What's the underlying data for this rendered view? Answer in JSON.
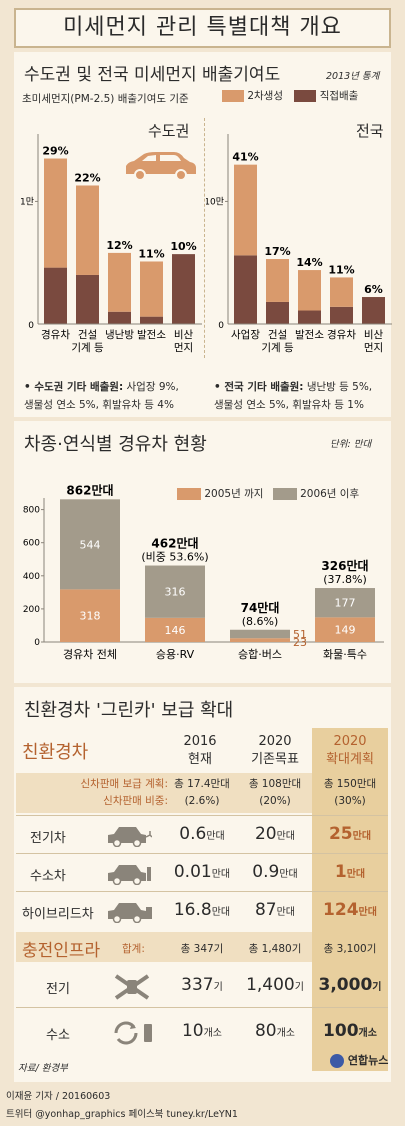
{
  "title": "미세먼지 관리 특별대책 개요",
  "colors": {
    "light": "#d99a6c",
    "dark": "#7a4a3f",
    "gray": "#a39b8b",
    "accent": "#b4622f",
    "bg": "#f2e6d2",
    "panel": "#fbf6ec"
  },
  "sec1": {
    "title": "수도권 및 전국 미세먼지 배출기여도",
    "year": "2013년 통계",
    "subtitle": "초미세먼지(PM-2.5) 배출기여도 기준",
    "legend_secondary": "2차생성",
    "legend_direct": "직접배출",
    "capital_label": "수도권",
    "nation_label": "전국",
    "capital_note_bold": "• 수도권 기타 배출원:",
    "capital_note_1": " 사업장 9%,",
    "capital_note_2": "생물성 연소 5%, 휘발유차 등 4%",
    "nation_note_bold": "• 전국 기타 배출원:",
    "nation_note_1": " 냉난방 등 5%,",
    "nation_note_2": "생물성 연소 5%, 휘발유차 등 1%",
    "y_tick_top": "1만",
    "y_tick_zero": "0",
    "nation_y_tick_top": "10만"
  },
  "chart_data": [
    {
      "type": "bar",
      "title": "수도권",
      "categories": [
        "경유차",
        "건설기계 등",
        "냉난방",
        "발전소",
        "비산먼지"
      ],
      "category_lines": [
        [
          "경유차"
        ],
        [
          "건설",
          "기계 등"
        ],
        [
          "냉난방"
        ],
        [
          "발전소"
        ],
        [
          "비산",
          "먼지"
        ]
      ],
      "series": [
        {
          "name": "직접배출",
          "values": [
            4600,
            4000,
            1000,
            600,
            5700
          ]
        },
        {
          "name": "2차생성",
          "values": [
            8900,
            7300,
            4800,
            4500,
            0
          ]
        }
      ],
      "labels": [
        "29%",
        "22%",
        "12%",
        "11%",
        "10%"
      ],
      "ylim": [
        0,
        15500
      ]
    },
    {
      "type": "bar",
      "title": "전국",
      "categories": [
        "사업장",
        "건설기계 등",
        "발전소",
        "경유차",
        "비산먼지"
      ],
      "category_lines": [
        [
          "사업장"
        ],
        [
          "건설",
          "기계 등"
        ],
        [
          "발전소"
        ],
        [
          "경유차"
        ],
        [
          "비산",
          "먼지"
        ]
      ],
      "series": [
        {
          "name": "직접배출",
          "values": [
            56000,
            18000,
            11000,
            14000,
            22000
          ]
        },
        {
          "name": "2차생성",
          "values": [
            74000,
            35000,
            33000,
            24000,
            0
          ]
        }
      ],
      "labels": [
        "41%",
        "17%",
        "14%",
        "11%",
        "6%"
      ],
      "ylim": [
        0,
        155000
      ]
    },
    {
      "type": "bar",
      "title": "차종·연식별 경유차 현황",
      "unit": "단위: 만대",
      "categories": [
        "경유차 전체",
        "승용·RV",
        "승합·버스",
        "화물·특수"
      ],
      "series": [
        {
          "name": "2005년 까지",
          "values": [
            318,
            146,
            23,
            149
          ]
        },
        {
          "name": "2006년 이후",
          "values": [
            544,
            316,
            51,
            177
          ]
        }
      ],
      "totals": [
        "862만대",
        "462만대",
        "74만대",
        "326만대"
      ],
      "shares": [
        "",
        "(비중 53.6%)",
        "(8.6%)",
        "(37.8%)"
      ],
      "yticks": [
        "0",
        "200",
        "400",
        "600",
        "800"
      ],
      "ylim": [
        0,
        870
      ]
    }
  ],
  "sec3": {
    "title": "친환경차 '그린카' 보급 확대",
    "eco_label": "친환경차",
    "col_2016": [
      "2016",
      "현재"
    ],
    "col_2020a": [
      "2020",
      "기존목표"
    ],
    "col_2020b": [
      "2020",
      "확대계획"
    ],
    "sales_label_1": "신차판매 보급 계획:",
    "sales_label_2": "신차판매 비중:",
    "sales": [
      [
        "총 17.4만대",
        "(2.6%)"
      ],
      [
        "총 108만대",
        "(20%)"
      ],
      [
        "총 150만대",
        "(30%)"
      ]
    ],
    "rows": [
      {
        "label": "전기차",
        "v": [
          [
            "0.6",
            "만대"
          ],
          [
            "20",
            "만대"
          ],
          [
            "25",
            "만대"
          ]
        ]
      },
      {
        "label": "수소차",
        "v": [
          [
            "0.01",
            "만대"
          ],
          [
            "0.9",
            "만대"
          ],
          [
            "1",
            "만대"
          ]
        ]
      },
      {
        "label": "하이브리드차",
        "v": [
          [
            "16.8",
            "만대"
          ],
          [
            "87",
            "만대"
          ],
          [
            "124",
            "만대"
          ]
        ]
      }
    ],
    "infra_label": "충전인프라",
    "infra_sum_label": "합계:",
    "infra_sum": [
      "총 347기",
      "총 1,480기",
      "총 3,100기"
    ],
    "infra_rows": [
      {
        "label": "전기",
        "v": [
          [
            "337",
            "기"
          ],
          [
            "1,400",
            "기"
          ],
          [
            "3,000",
            "기"
          ]
        ]
      },
      {
        "label": "수소",
        "v": [
          [
            "10",
            "개소"
          ],
          [
            "80",
            "개소"
          ],
          [
            "100",
            "개소"
          ]
        ]
      }
    ]
  },
  "footer": {
    "source": "자료/ 환경부",
    "logo": "연합뉴스",
    "reporter": "이재윤 기자 / 20160603",
    "sns": "트위터 @yonhap_graphics  페이스북 tuney.kr/LeYN1"
  }
}
